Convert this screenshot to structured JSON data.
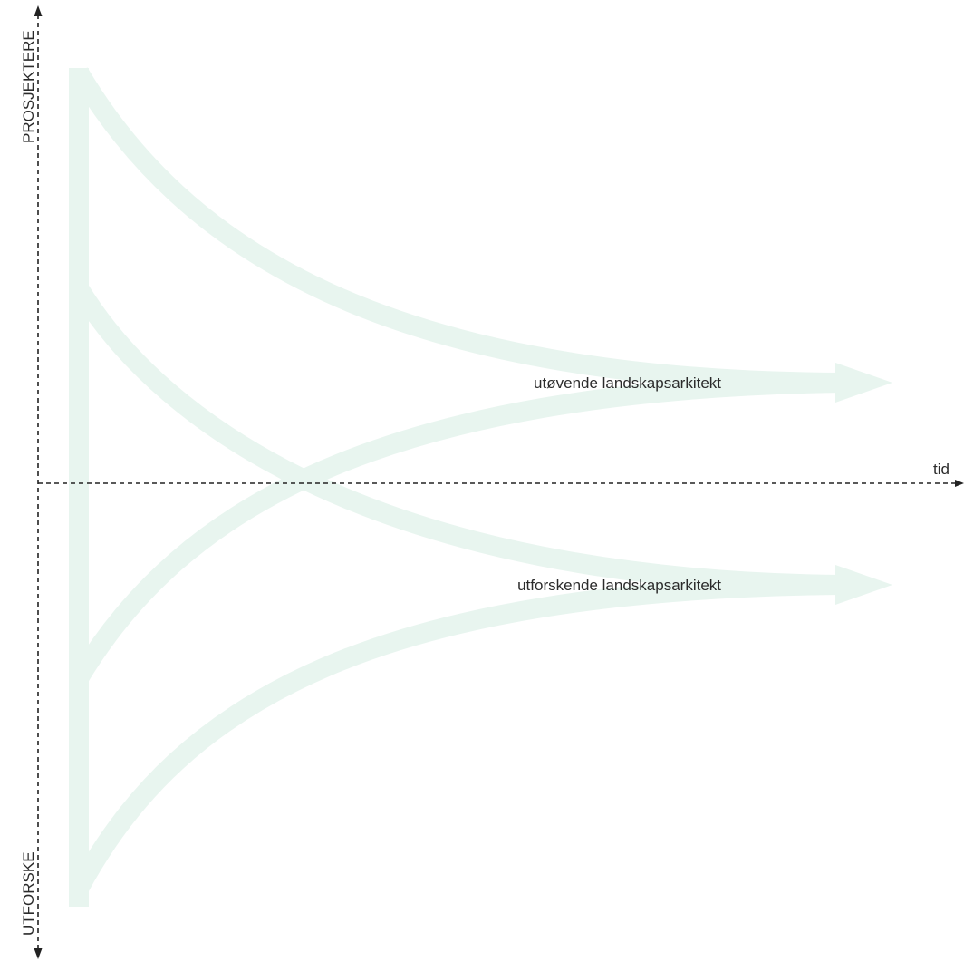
{
  "diagram": {
    "vertical_axis": {
      "top_label": "PROSJEKTERE",
      "bottom_label": "UTFORSKE"
    },
    "horizontal_axis": {
      "label": "tid"
    },
    "paths": [
      {
        "label": "utøvende landskapsarkitekt"
      },
      {
        "label": "utforskende landskapsarkitekt"
      }
    ],
    "colors": {
      "flow": "#e8f5ef",
      "axis": "#222222",
      "text": "#2b2b2b"
    }
  }
}
